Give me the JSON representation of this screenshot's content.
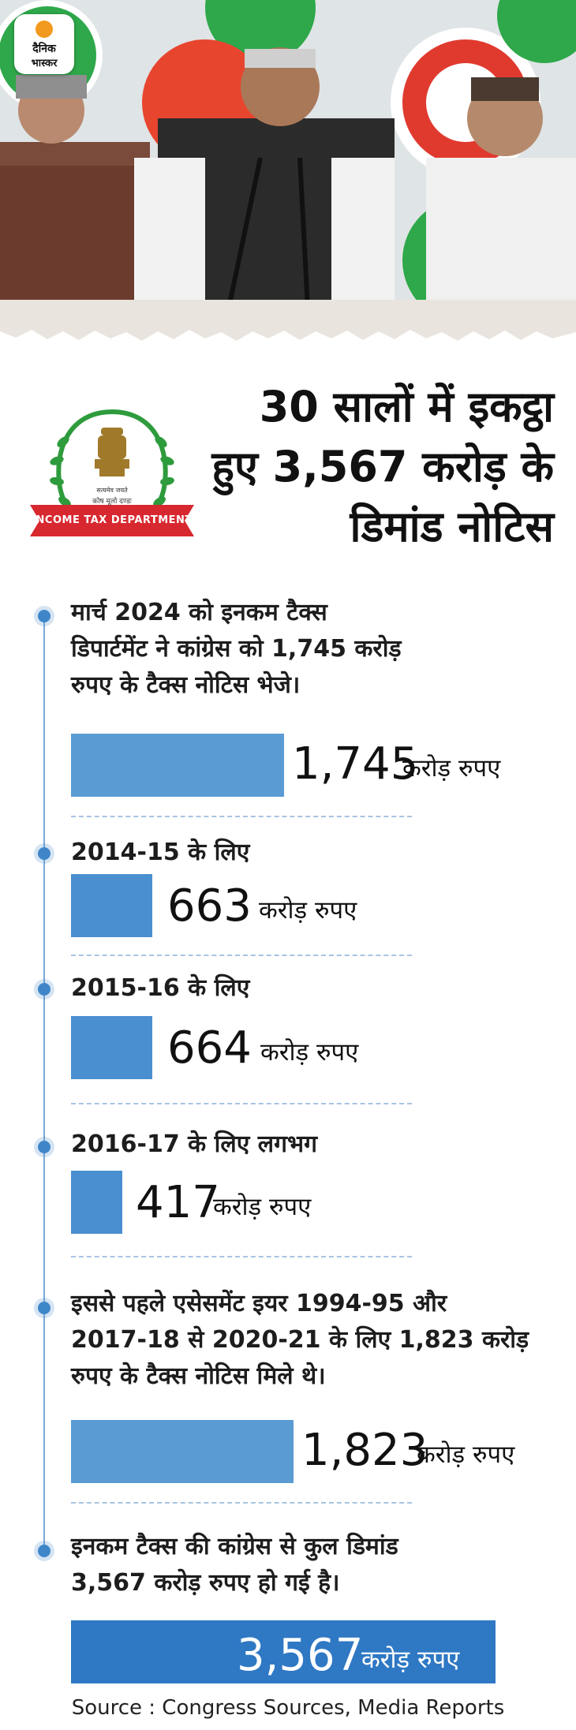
{
  "brand": {
    "logo_line1": "दैनिक",
    "logo_line2": "भास्कर"
  },
  "title": [
    "30 सालों में इकट्ठा",
    "हुए 3,567 करोड़ के",
    "डिमांड नोटिस"
  ],
  "emblem": {
    "banner_text": "INCOME TAX DEPARTMENT",
    "motto": "सत्यमेव जयते",
    "caption": "कोष मूलो दण्डः"
  },
  "sections": [
    {
      "text": [
        "मार्च 2024 को इनकम टैक्स",
        "डिपार्टमेंट ने कांग्रेस को 1,745 करोड़",
        "रुपए के टैक्स नोटिस भेजे।"
      ],
      "value": "1,745",
      "unit": "करोड़ रुपए"
    },
    {
      "text": [
        "2014-15 के लिए"
      ],
      "value": "663",
      "unit": "करोड़ रुपए"
    },
    {
      "text": [
        "2015-16 के लिए"
      ],
      "value": "664",
      "unit": "करोड़ रुपए"
    },
    {
      "text": [
        "2016-17 के लिए लगभग"
      ],
      "value": "417",
      "unit": "करोड़ रुपए"
    },
    {
      "text": [
        "इससे पहले एसेसमेंट इयर 1994-95 और",
        "2017-18 से 2020-21 के लिए 1,823 करोड़",
        "रुपए के टैक्स नोटिस मिले थे।"
      ],
      "value": "1,823",
      "unit": "करोड़ रुपए"
    },
    {
      "text": [
        "इनकम टैक्स की कांग्रेस से कुल डिमांड",
        "3,567 करोड़ रुपए हो गई है।"
      ],
      "value": "3,567",
      "unit": "करोड़ रुपए"
    }
  ],
  "source": "Source : Congress Sources, Media Reports",
  "colors": {
    "bar": "#5a9bd4",
    "bar_dark": "#2f78c4",
    "timeline": "#7aa9d9",
    "emblem_red": "#d8282f",
    "emblem_green": "#2e9b3c"
  },
  "chart_data": {
    "type": "bar",
    "categories": [
      "मार्च 2024",
      "2014-15",
      "2015-16",
      "2016-17",
      "1994-95, 2017-18 से 2020-21",
      "कुल"
    ],
    "values": [
      1745,
      663,
      664,
      417,
      1823,
      3567
    ],
    "unit": "करोड़ रुपए"
  }
}
